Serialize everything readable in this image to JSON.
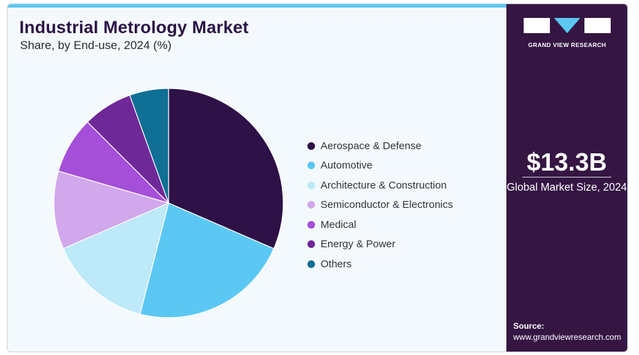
{
  "header": {
    "title": "Industrial Metrology Market",
    "subtitle": "Share, by End-use, 2024 (%)"
  },
  "chart_data": {
    "type": "pie",
    "categories": [
      "Aerospace & Defense",
      "Automotive",
      "Architecture & Construction",
      "Semiconductor & Electronics",
      "Medical",
      "Energy & Power",
      "Others"
    ],
    "values": [
      31.5,
      22.5,
      14.5,
      11,
      8,
      7,
      5.5
    ],
    "colors": [
      "#2d1147",
      "#5bc8f4",
      "#bde9f8",
      "#d2a8ec",
      "#a44fd8",
      "#6f2898",
      "#0f6f94"
    ],
    "title": "Industrial Metrology Market",
    "subtitle": "Share, by End-use, 2024 (%)",
    "legend_position": "right"
  },
  "sidebar": {
    "brand_name": "GRAND VIEW RESEARCH",
    "market_size": "$13.3B",
    "market_size_label": "Global Market Size, 2024",
    "source_label": "Source:",
    "source_url": "www.grandviewresearch.com"
  }
}
